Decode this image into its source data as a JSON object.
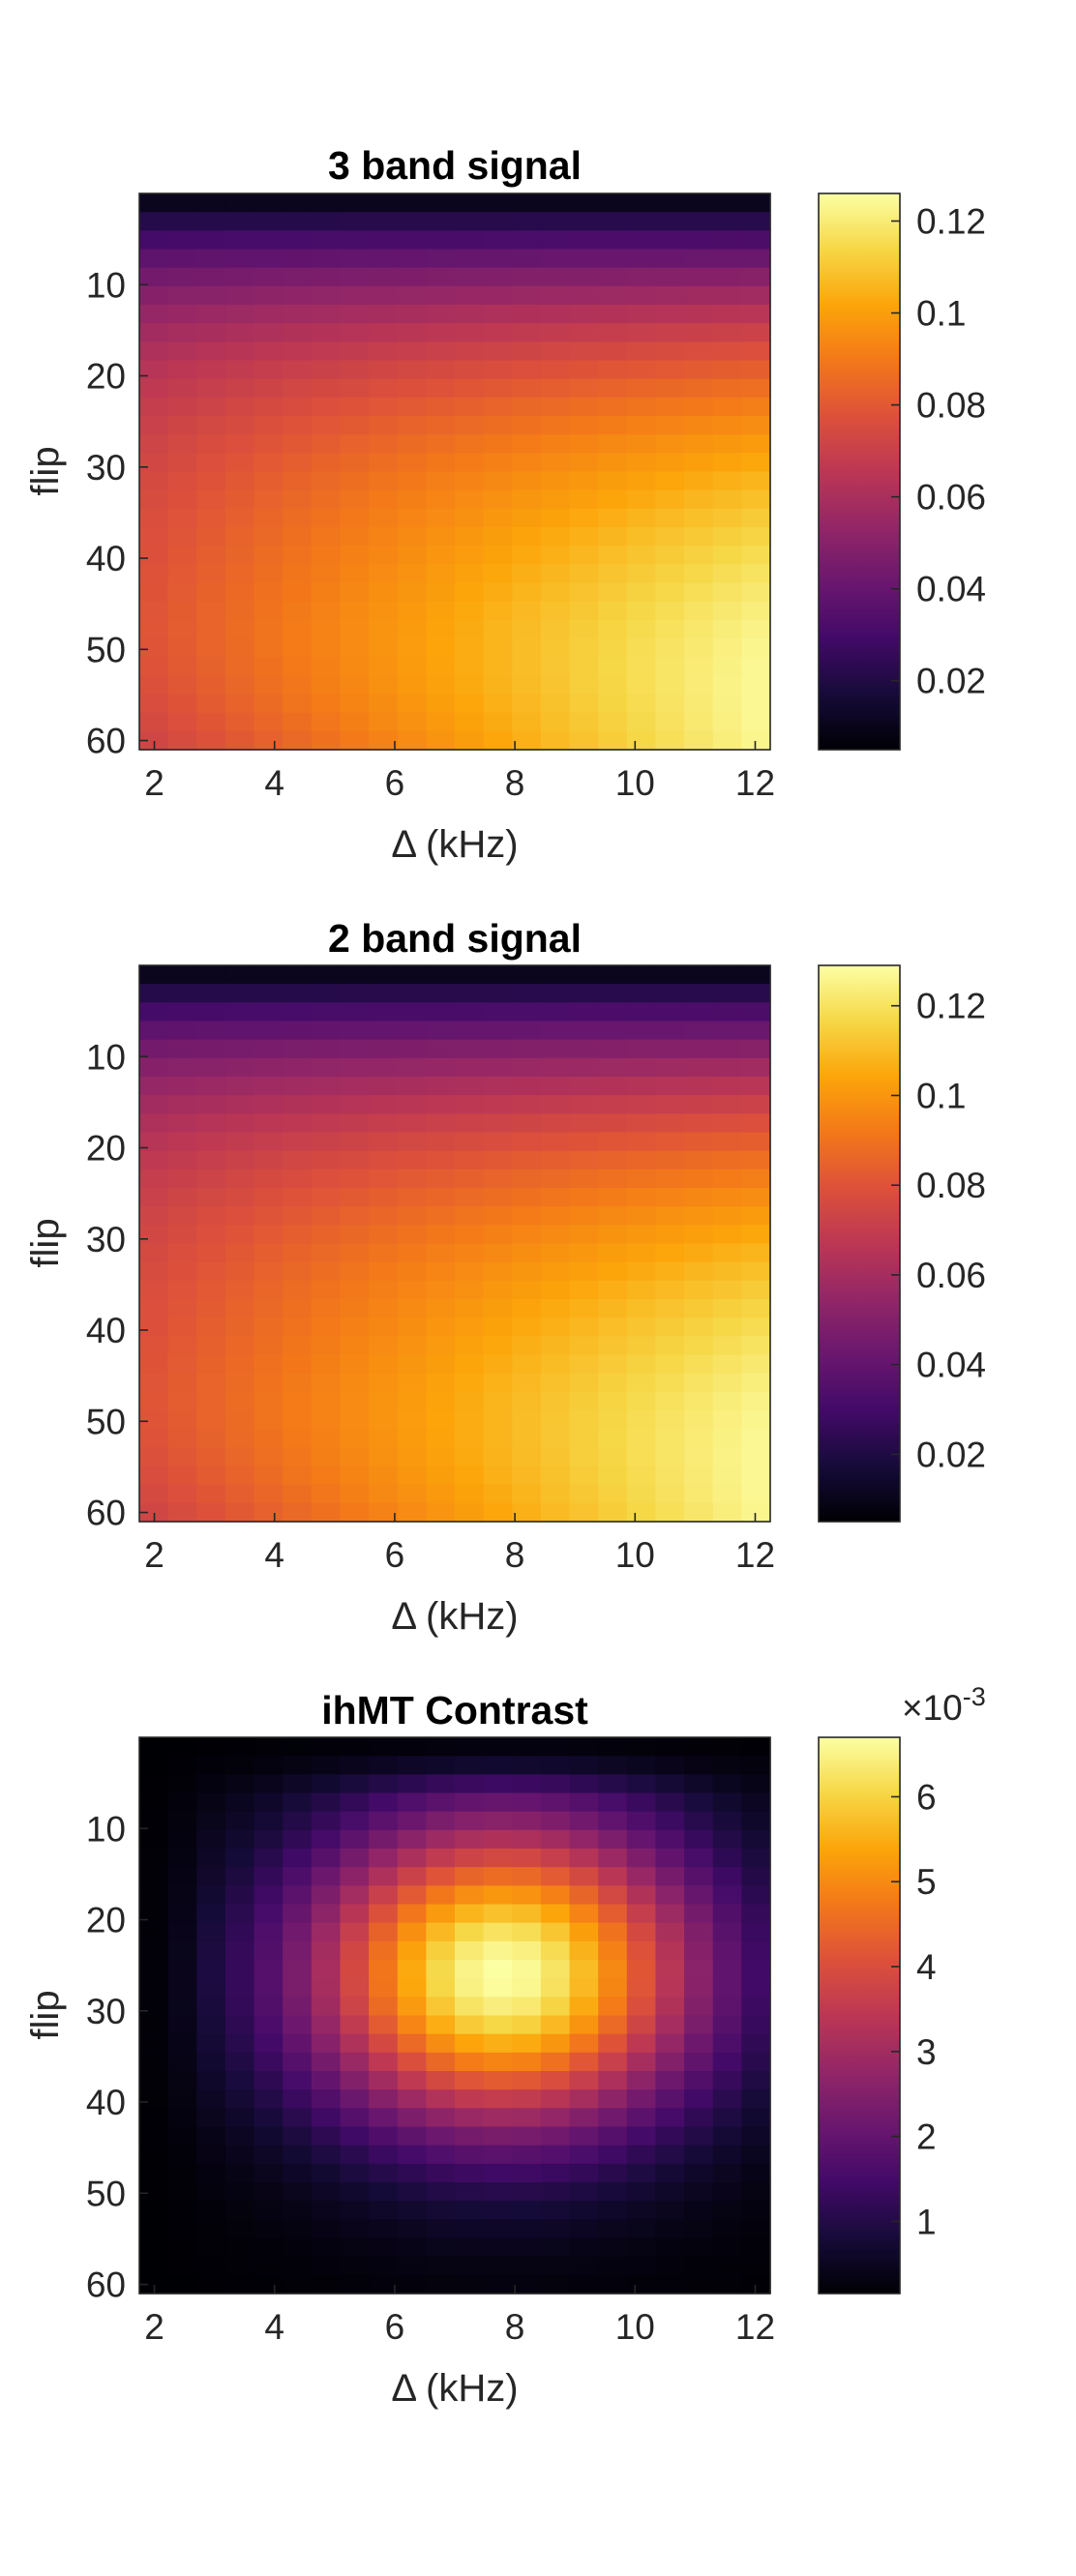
{
  "chart_data": [
    {
      "type": "heatmap",
      "title": "3 band signal",
      "xlabel": "Δ (kHz)",
      "ylabel": "flip",
      "x_range": [
        1.75,
        12.25
      ],
      "y_range": [
        0,
        61
      ],
      "x_ticks": [
        2,
        4,
        6,
        8,
        10,
        12
      ],
      "y_ticks": [
        10,
        20,
        30,
        40,
        50,
        60
      ],
      "x_tick_labels": [
        "2",
        "4",
        "6",
        "8",
        "10",
        "12"
      ],
      "y_tick_labels": [
        "10",
        "20",
        "30",
        "40",
        "50",
        "60"
      ],
      "grid": {
        "x_cells": 22,
        "y_cells": 30
      },
      "colormap": "inferno",
      "colorbar": {
        "clim": [
          0.005,
          0.126
        ],
        "ticks": [
          0.02,
          0.04,
          0.06,
          0.08,
          0.1,
          0.12
        ],
        "tick_labels": [
          "0.02",
          "0.04",
          "0.06",
          "0.08",
          "0.1",
          "0.12"
        ],
        "exponent_label": ""
      },
      "surface": {
        "kind": "signal",
        "min": 0.005,
        "max": 0.126,
        "peak_delta_khz": 12,
        "peak_flip": 45
      }
    },
    {
      "type": "heatmap",
      "title": "2 band signal",
      "xlabel": "Δ (kHz)",
      "ylabel": "flip",
      "x_range": [
        1.75,
        12.25
      ],
      "y_range": [
        0,
        61
      ],
      "x_ticks": [
        2,
        4,
        6,
        8,
        10,
        12
      ],
      "y_ticks": [
        10,
        20,
        30,
        40,
        50,
        60
      ],
      "x_tick_labels": [
        "2",
        "4",
        "6",
        "8",
        "10",
        "12"
      ],
      "y_tick_labels": [
        "10",
        "20",
        "30",
        "40",
        "50",
        "60"
      ],
      "grid": {
        "x_cells": 22,
        "y_cells": 30
      },
      "colormap": "inferno",
      "colorbar": {
        "clim": [
          0.005,
          0.129
        ],
        "ticks": [
          0.02,
          0.04,
          0.06,
          0.08,
          0.1,
          0.12
        ],
        "tick_labels": [
          "0.02",
          "0.04",
          "0.06",
          "0.08",
          "0.1",
          "0.12"
        ],
        "exponent_label": ""
      },
      "surface": {
        "kind": "signal",
        "min": 0.005,
        "max": 0.129,
        "peak_delta_khz": 12,
        "peak_flip": 45
      }
    },
    {
      "type": "heatmap",
      "title": "ihMT Contrast",
      "xlabel": "Δ (kHz)",
      "ylabel": "flip",
      "x_range": [
        1.75,
        12.25
      ],
      "y_range": [
        0,
        61
      ],
      "x_ticks": [
        2,
        4,
        6,
        8,
        10,
        12
      ],
      "y_ticks": [
        10,
        20,
        30,
        40,
        50,
        60
      ],
      "x_tick_labels": [
        "2",
        "4",
        "6",
        "8",
        "10",
        "12"
      ],
      "y_tick_labels": [
        "10",
        "20",
        "30",
        "40",
        "50",
        "60"
      ],
      "grid": {
        "x_cells": 22,
        "y_cells": 30
      },
      "colormap": "inferno",
      "colorbar": {
        "clim": [
          0.15,
          6.7
        ],
        "ticks": [
          1,
          2,
          3,
          4,
          5,
          6
        ],
        "tick_labels": [
          "1",
          "2",
          "3",
          "4",
          "5",
          "6"
        ],
        "exponent_label": "×10",
        "exponent_power": "-3"
      },
      "surface": {
        "kind": "contrast",
        "min": 0.15,
        "max": 6.7,
        "peak_delta_khz": 7.8,
        "peak_flip": 26
      }
    }
  ]
}
